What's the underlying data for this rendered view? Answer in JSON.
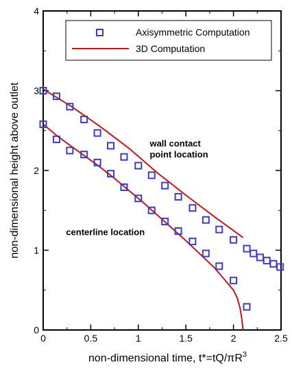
{
  "chart_data": {
    "type": "scatter",
    "xlabel": "non-dimensional time, t*=tQ/πR",
    "xlabel_superscript": "3",
    "ylabel": "non-dimensional height above outlet",
    "xlim": [
      0,
      2.5
    ],
    "ylim": [
      0,
      4
    ],
    "x_ticks": [
      "0",
      "0.5",
      "1",
      "1.5",
      "2",
      "2.5"
    ],
    "y_ticks": [
      "0",
      "1",
      "2",
      "3",
      "4"
    ],
    "legend_position": "top-right",
    "grid": false,
    "annotations": [
      {
        "lines": [
          "wall contact",
          "point location"
        ],
        "x": 1.12,
        "y": 2.3
      },
      {
        "lines": [
          "centerline location"
        ],
        "x": 0.24,
        "y": 1.19
      }
    ],
    "series": [
      {
        "name": "Axisymmetric Computation",
        "kind": "markers",
        "color": "#3a3ad4",
        "groups": [
          {
            "label": "wall",
            "x": [
              0.0,
              0.14,
              0.28,
              0.43,
              0.57,
              0.71,
              0.85,
              1.0,
              1.14,
              1.28,
              1.42,
              1.57,
              1.71,
              1.85,
              2.0,
              2.14,
              2.21,
              2.28,
              2.35,
              2.42,
              2.49
            ],
            "y": [
              3.0,
              2.93,
              2.8,
              2.64,
              2.47,
              2.31,
              2.17,
              2.06,
              1.94,
              1.81,
              1.67,
              1.53,
              1.38,
              1.26,
              1.13,
              1.02,
              0.96,
              0.91,
              0.87,
              0.83,
              0.79
            ]
          },
          {
            "label": "centerline",
            "x": [
              0.0,
              0.14,
              0.28,
              0.43,
              0.57,
              0.71,
              0.85,
              1.0,
              1.14,
              1.28,
              1.42,
              1.57,
              1.71,
              1.85,
              2.0,
              2.14
            ],
            "y": [
              2.58,
              2.39,
              2.25,
              2.2,
              2.1,
              1.96,
              1.79,
              1.65,
              1.5,
              1.36,
              1.24,
              1.11,
              0.96,
              0.8,
              0.62,
              0.29
            ]
          }
        ]
      },
      {
        "name": "3D Computation",
        "kind": "line",
        "color": "#cc1111",
        "groups": [
          {
            "label": "wall",
            "x": [
              0.0,
              0.3,
              0.6,
              0.9,
              1.2,
              1.5,
              1.8,
              2.1
            ],
            "y": [
              3.02,
              2.8,
              2.55,
              2.28,
              1.97,
              1.69,
              1.42,
              1.16
            ]
          },
          {
            "label": "centerline",
            "x": [
              0.0,
              0.15,
              0.3,
              0.45,
              0.6,
              0.75,
              0.9,
              1.05,
              1.2,
              1.35,
              1.5,
              1.65,
              1.8,
              1.9,
              2.0,
              2.04,
              2.07,
              2.09,
              2.1
            ],
            "y": [
              2.58,
              2.43,
              2.3,
              2.17,
              2.04,
              1.9,
              1.75,
              1.6,
              1.44,
              1.28,
              1.12,
              0.95,
              0.78,
              0.64,
              0.5,
              0.4,
              0.27,
              0.12,
              0.0
            ]
          }
        ]
      }
    ]
  }
}
